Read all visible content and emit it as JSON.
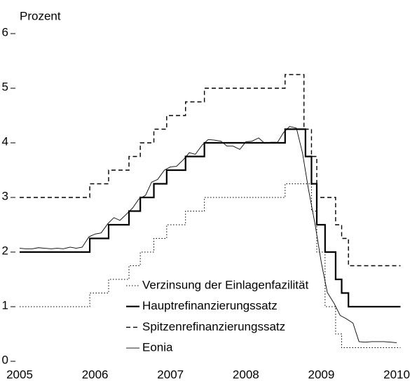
{
  "chart_data": {
    "type": "line",
    "ylabel": "Prozent",
    "x": [
      2005,
      2005.93,
      2005.93,
      2006.18,
      2006.18,
      2006.45,
      2006.45,
      2006.6,
      2006.6,
      2006.78,
      2006.78,
      2006.95,
      2006.95,
      2007.2,
      2007.2,
      2007.45,
      2007.45,
      2008.52,
      2008.52,
      2008.77,
      2008.77,
      2008.79,
      2008.79,
      2008.87,
      2008.87,
      2008.94,
      2008.94,
      2009.05,
      2009.05,
      2009.19,
      2009.19,
      2009.27,
      2009.27,
      2009.36,
      2009.36,
      2010.05
    ],
    "series": [
      {
        "name": "Verzinsung der Einlagenfazilität",
        "color": "#000000",
        "style": "dotted",
        "width": 1,
        "values": [
          1,
          1,
          1.25,
          1.25,
          1.5,
          1.5,
          1.75,
          1.75,
          2,
          2,
          2.25,
          2.25,
          2.5,
          2.5,
          2.75,
          2.75,
          3,
          3,
          3.25,
          3.25,
          3.25,
          3.25,
          3.25,
          3.25,
          2.75,
          2.75,
          2,
          2,
          1,
          1,
          0.5,
          0.5,
          0.25,
          0.25,
          0.25,
          0.25
        ]
      },
      {
        "name": "Hauptrefinanzierungssatz",
        "color": "#000000",
        "style": "solid",
        "width": 2.2,
        "values": [
          2,
          2,
          2.25,
          2.25,
          2.5,
          2.5,
          2.75,
          2.75,
          3,
          3,
          3.25,
          3.25,
          3.5,
          3.5,
          3.75,
          3.75,
          4,
          4,
          4.25,
          4.25,
          4.25,
          4.25,
          3.75,
          3.75,
          3.25,
          3.25,
          2.5,
          2.5,
          2,
          2,
          1.5,
          1.5,
          1.25,
          1.25,
          1,
          1
        ]
      },
      {
        "name": "Spitzenrefinanzierungssatz",
        "color": "#000000",
        "style": "dashed",
        "width": 1.4,
        "values": [
          3,
          3,
          3.25,
          3.25,
          3.5,
          3.5,
          3.75,
          3.75,
          4,
          4,
          4.25,
          4.25,
          4.5,
          4.5,
          4.75,
          4.75,
          5,
          5,
          5.25,
          5.25,
          4.25,
          4.25,
          4.25,
          4.25,
          3.75,
          3.75,
          3,
          3,
          3,
          3,
          2.5,
          2.5,
          2.25,
          2.25,
          1.75,
          1.75
        ]
      },
      {
        "name": "Eonia",
        "color": "#000000",
        "style": "solid",
        "width": 0.9,
        "x": [
          2005,
          2005.08,
          2005.17,
          2005.25,
          2005.33,
          2005.42,
          2005.5,
          2005.58,
          2005.67,
          2005.75,
          2005.83,
          2005.92,
          2006,
          2006.08,
          2006.17,
          2006.25,
          2006.33,
          2006.42,
          2006.5,
          2006.58,
          2006.67,
          2006.75,
          2006.83,
          2006.92,
          2007,
          2007.08,
          2007.17,
          2007.25,
          2007.33,
          2007.42,
          2007.5,
          2007.58,
          2007.67,
          2007.75,
          2007.83,
          2007.92,
          2008,
          2008.08,
          2008.17,
          2008.25,
          2008.33,
          2008.42,
          2008.5,
          2008.58,
          2008.67,
          2008.75,
          2008.83,
          2008.92,
          2009,
          2009.08,
          2009.17,
          2009.25,
          2009.33,
          2009.42,
          2009.5,
          2009.58,
          2009.67,
          2009.75,
          2009.83,
          2009.92,
          2010
        ],
        "values": [
          2.07,
          2.06,
          2.06,
          2.08,
          2.07,
          2.06,
          2.07,
          2.06,
          2.09,
          2.07,
          2.09,
          2.28,
          2.33,
          2.35,
          2.52,
          2.63,
          2.58,
          2.7,
          2.81,
          2.97,
          3.04,
          3.28,
          3.33,
          3.5,
          3.56,
          3.57,
          3.69,
          3.82,
          3.79,
          3.96,
          4.06,
          4.05,
          4.03,
          3.94,
          3.94,
          3.88,
          4.02,
          4.03,
          4.09,
          3.99,
          4.01,
          4.01,
          4.19,
          4.3,
          4.27,
          3.82,
          3.15,
          2.49,
          1.81,
          1.26,
          1.06,
          0.84,
          0.78,
          0.7,
          0.36,
          0.35,
          0.36,
          0.36,
          0.36,
          0.35,
          0.34
        ]
      }
    ],
    "xlim": [
      2005,
      2010.1
    ],
    "xticks": [
      2005,
      2006,
      2007,
      2008,
      2009,
      2010
    ],
    "ylim": [
      0,
      6
    ],
    "yticks": [
      0,
      1,
      2,
      3,
      4,
      5,
      6
    ],
    "grid": false
  }
}
